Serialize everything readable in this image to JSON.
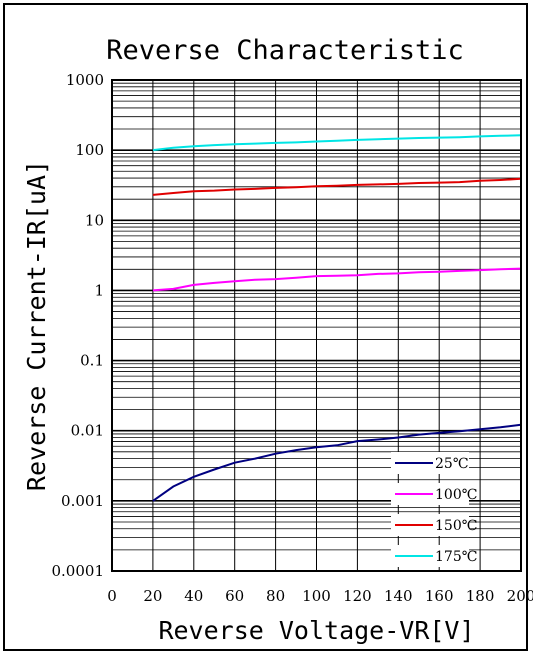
{
  "chart_data": {
    "type": "line",
    "title": "Reverse Characteristic",
    "xlabel": "Reverse Voltage-VR[V]",
    "ylabel": "Reverse Current-IR[uA]",
    "xlim": [
      0,
      200
    ],
    "ylim": [
      0.0001,
      1000
    ],
    "y_scale": "log",
    "grid": true,
    "legend_position": "bottom-right",
    "x_ticks": [
      "0",
      "20",
      "40",
      "60",
      "80",
      "100",
      "120",
      "140",
      "160",
      "180",
      "200"
    ],
    "y_ticks": [
      {
        "value": 1000,
        "label": "1000"
      },
      {
        "value": 100,
        "label": "100"
      },
      {
        "value": 10,
        "label": "10"
      },
      {
        "value": 1,
        "label": "1"
      },
      {
        "value": 0.1,
        "label": "0.1"
      },
      {
        "value": 0.01,
        "label": "0.01"
      },
      {
        "value": 0.001,
        "label": "0.001"
      },
      {
        "value": 0.0001,
        "label": "0.0001"
      }
    ],
    "x": [
      20,
      30,
      40,
      50,
      60,
      70,
      80,
      90,
      100,
      110,
      120,
      130,
      140,
      150,
      160,
      170,
      180,
      190,
      200
    ],
    "series": [
      {
        "name": "25℃",
        "color": "#000080",
        "values": [
          0.001,
          0.0016,
          0.0022,
          0.0028,
          0.0035,
          0.004,
          0.0047,
          0.0053,
          0.0058,
          0.0062,
          0.0071,
          0.0075,
          0.008,
          0.0088,
          0.0093,
          0.0098,
          0.0105,
          0.0112,
          0.0122
        ]
      },
      {
        "name": "100℃",
        "color": "#ff00ff",
        "values": [
          1.0,
          1.05,
          1.2,
          1.28,
          1.35,
          1.42,
          1.45,
          1.52,
          1.6,
          1.62,
          1.65,
          1.72,
          1.75,
          1.82,
          1.85,
          1.9,
          1.95,
          2.0,
          2.05
        ]
      },
      {
        "name": "150℃",
        "color": "#e00000",
        "values": [
          23,
          24.5,
          26,
          26.5,
          27.5,
          28,
          29,
          29.5,
          30.5,
          31,
          32,
          32.5,
          33,
          34,
          34.5,
          35,
          36.5,
          37.5,
          39
        ]
      },
      {
        "name": "175℃",
        "color": "#00e5e5",
        "values": [
          100,
          108,
          114,
          118,
          121,
          124,
          127,
          129,
          133,
          136,
          140,
          143,
          146,
          149,
          151,
          153,
          157,
          160,
          163
        ]
      }
    ]
  }
}
